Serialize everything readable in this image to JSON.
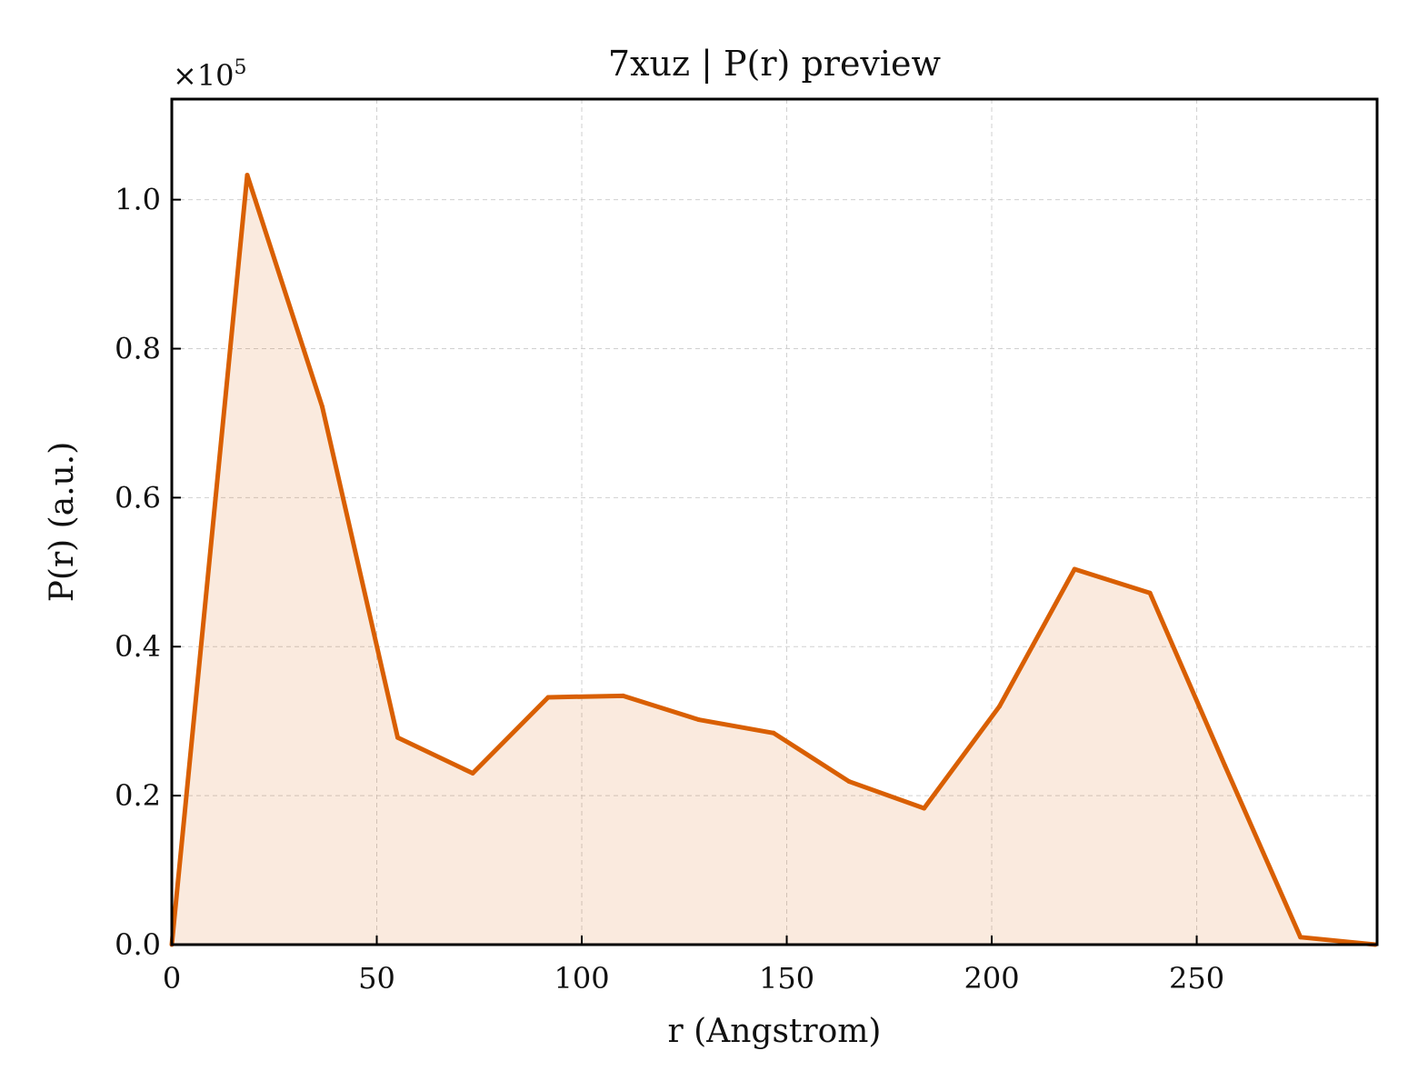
{
  "chart_data": {
    "type": "area",
    "title": "7xuz | P(r) preview",
    "xlabel": "r (Angstrom)",
    "ylabel": "P(r) (a.u.)",
    "y_multiplier_base": "×10",
    "y_multiplier_exp": "5",
    "y_scale": 100000,
    "xlim": [
      0,
      294
    ],
    "ylim": [
      0,
      113500
    ],
    "x_ticks": [
      0,
      50,
      100,
      150,
      200,
      250
    ],
    "x_tick_labels": [
      "0",
      "50",
      "100",
      "150",
      "200",
      "250"
    ],
    "y_ticks": [
      0,
      20000,
      40000,
      60000,
      80000,
      100000
    ],
    "y_tick_labels": [
      "0.0",
      "0.2",
      "0.4",
      "0.6",
      "0.8",
      "1.0"
    ],
    "grid": true,
    "series": [
      {
        "color": "#d95f02",
        "fill_color": "#d95f02",
        "fill_opacity": 0.13,
        "x": [
          0,
          18.4,
          36.7,
          55.1,
          73.4,
          91.8,
          110.1,
          128.5,
          146.8,
          165.2,
          183.5,
          201.9,
          220.2,
          238.6,
          256.9,
          275.3,
          293.6
        ],
        "y": [
          0,
          103300,
          72200,
          27800,
          23000,
          33200,
          33400,
          30200,
          28400,
          21900,
          18300,
          32000,
          50400,
          47200,
          24000,
          1000,
          0
        ]
      }
    ]
  }
}
